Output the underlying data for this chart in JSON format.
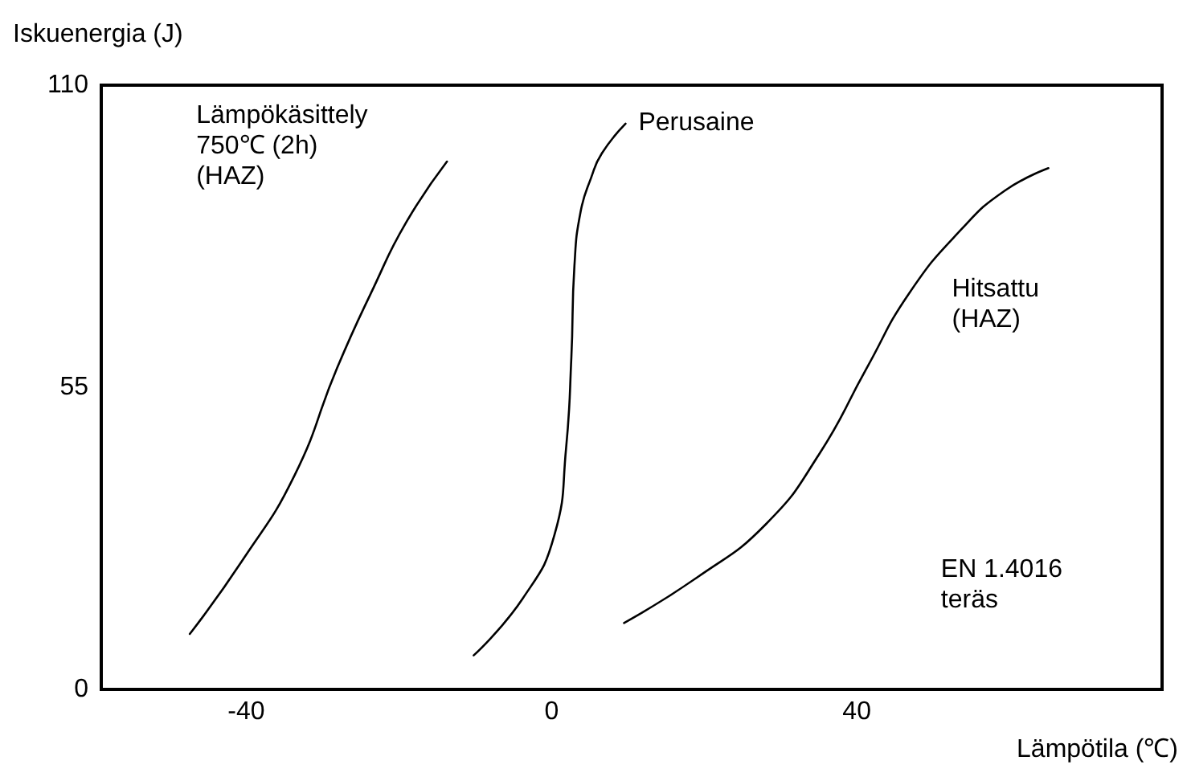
{
  "chart_data": {
    "type": "line",
    "xlabel": "Lämpötila (℃)",
    "ylabel": "Iskuenergia (J)",
    "xlim": [
      -59,
      80
    ],
    "xticks": [
      -40,
      0,
      40
    ],
    "ylim": [
      0,
      110
    ],
    "yticks": [
      0,
      55,
      110
    ],
    "grid": false,
    "legend": false,
    "marker": "none",
    "line_style": "solid",
    "series": [
      {
        "name": "Lämpökäsittely\n750℃ (2h)\n(HAZ)",
        "color": "#000000",
        "x": [
          -47.4,
          -40.6,
          -33.7,
          -28.1,
          -23.3,
          -19.1,
          -13.7
        ],
        "values": [
          10.1,
          23.3,
          38.9,
          58.5,
          73.2,
          84.9,
          96.1
        ]
      },
      {
        "name": "Perusaine",
        "color": "#000000",
        "x": [
          -10.2,
          -3.8,
          0.4,
          1.9,
          2.6,
          3.0,
          3.8,
          5.2,
          6.6,
          9.7
        ],
        "values": [
          6.2,
          16.5,
          28.2,
          43.8,
          60.5,
          77.1,
          86.9,
          93.2,
          97.6,
          103
        ]
      },
      {
        "name": "Hitsattu\n(HAZ)",
        "color": "#000000",
        "x": [
          9.5,
          19.1,
          28.1,
          35.1,
          41.3,
          46.9,
          53.8,
          59.4,
          65.1
        ],
        "values": [
          12.1,
          20.4,
          30.1,
          42.9,
          58.5,
          72.2,
          83.9,
          90.8,
          94.9
        ]
      }
    ],
    "annotations": [
      "EN 1.4016\nteräs"
    ]
  }
}
